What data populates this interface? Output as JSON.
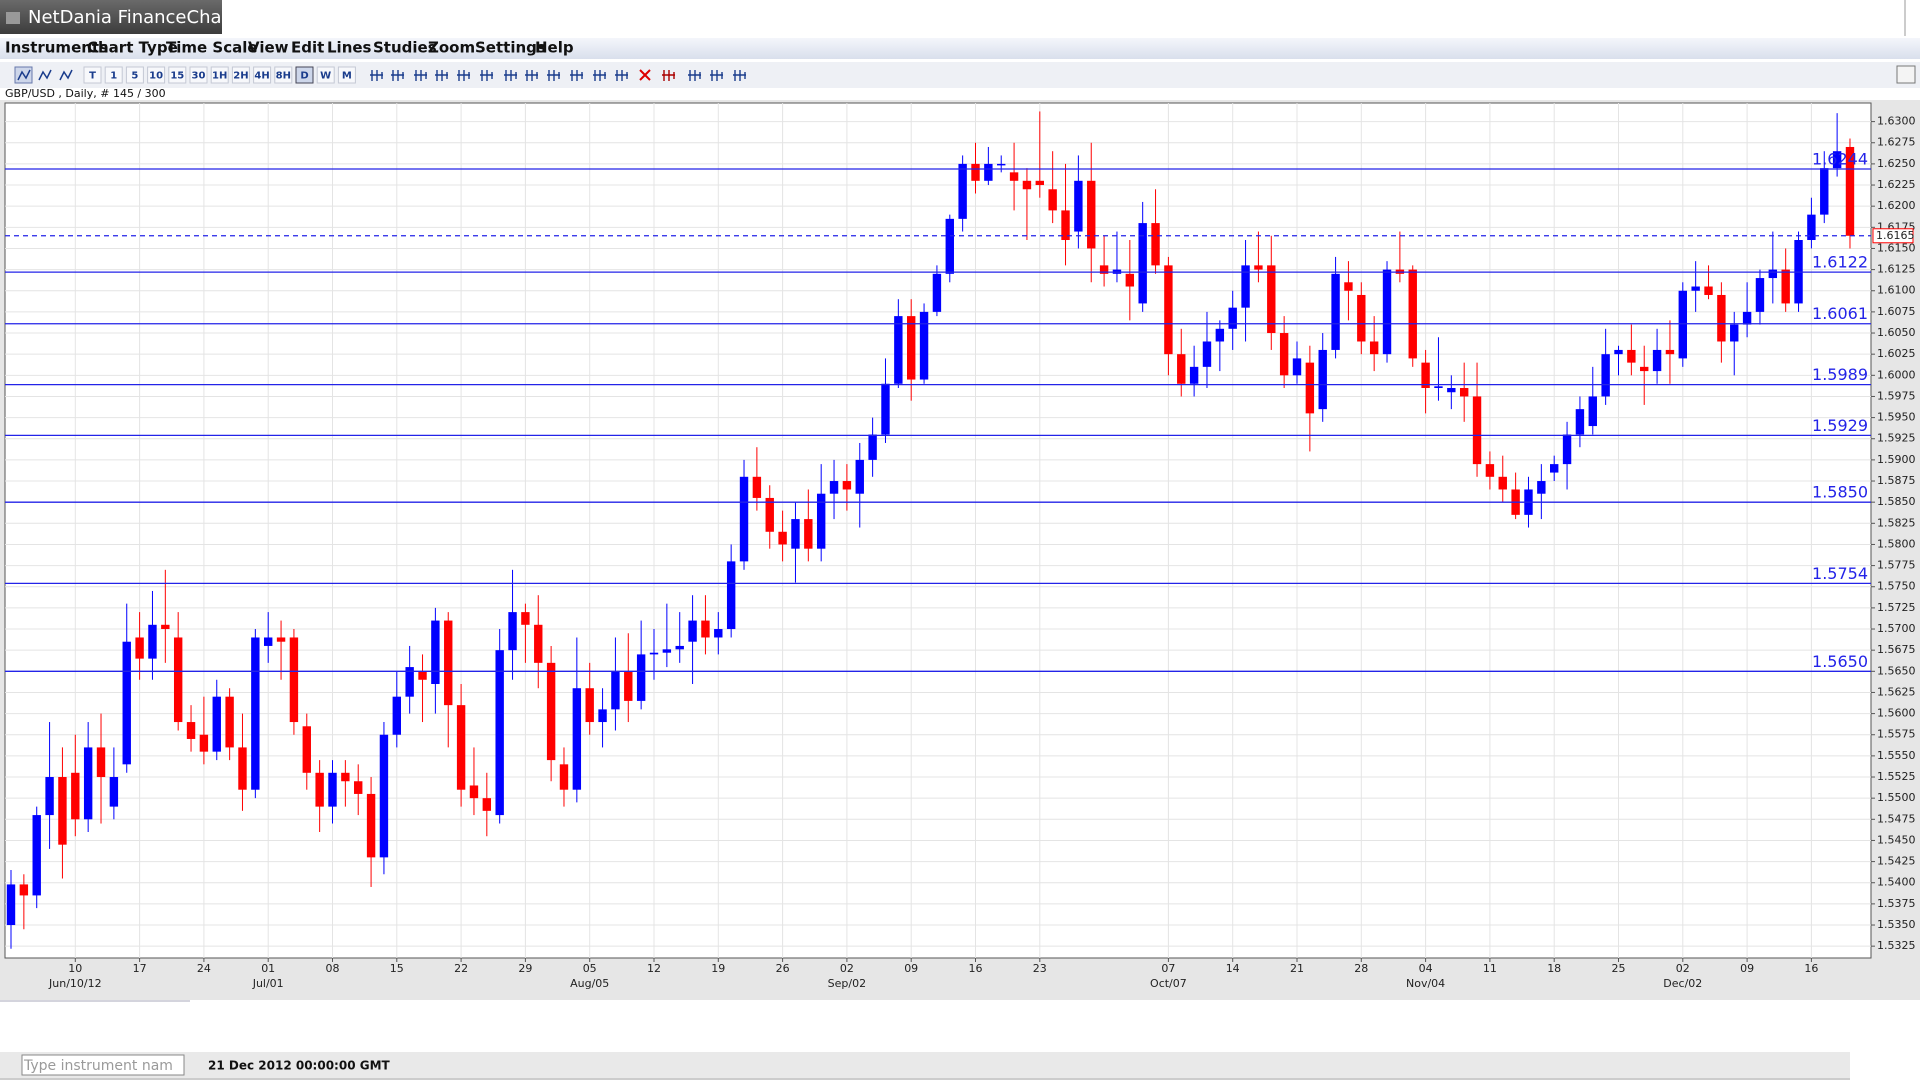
{
  "window": {
    "title": "NetDania FinanceChart"
  },
  "menu": [
    "Instruments",
    "Chart Type",
    "Time Scale",
    "View",
    "Edit",
    "Lines",
    "Studies",
    "Zoom",
    "Settings",
    "Help"
  ],
  "toolbar": {
    "buttons": [
      "T",
      "1",
      "5",
      "10",
      "15",
      "30",
      "1H",
      "2H",
      "4H",
      "8H",
      "D",
      "W",
      "M"
    ]
  },
  "info": "GBP/USD , Daily, # 145 / 300",
  "status": {
    "input_placeholder": "Type instrument nam",
    "timestamp": "21 Dec 2012 00:00:00 GMT"
  },
  "chart_data": {
    "type": "candlestick",
    "up_color": "#0000ff",
    "down_color": "#ff0000",
    "level_color": "#2323e8",
    "grid": true,
    "ylim": [
      1.5311,
      1.6322
    ],
    "yticks": [
      {
        "value": 1.63,
        "label": "1.6300"
      },
      1.6275,
      {
        "value": 1.625,
        "label": "1.6250"
      },
      1.6225,
      {
        "value": 1.62,
        "label": "1.6200"
      },
      1.6175,
      {
        "value": 1.615,
        "label": "1.6150"
      },
      1.6125,
      {
        "value": 1.61,
        "label": "1.6100"
      },
      1.6075,
      {
        "value": 1.605,
        "label": "1.6050"
      },
      1.6025,
      {
        "value": 1.6,
        "label": "1.6000"
      },
      1.5975,
      {
        "value": 1.595,
        "label": "1.5950"
      },
      1.5925,
      {
        "value": 1.59,
        "label": "1.5900"
      },
      1.5875,
      {
        "value": 1.585,
        "label": "1.5850"
      },
      1.5825,
      {
        "value": 1.58,
        "label": "1.5800"
      },
      1.5775,
      {
        "value": 1.575,
        "label": "1.5750"
      },
      1.5725,
      {
        "value": 1.57,
        "label": "1.5700"
      },
      1.5675,
      {
        "value": 1.565,
        "label": "1.5650"
      },
      1.5625,
      {
        "value": 1.56,
        "label": "1.5600"
      },
      1.5575,
      {
        "value": 1.555,
        "label": "1.5550"
      },
      1.5525,
      {
        "value": 1.55,
        "label": "1.5500"
      },
      1.5475,
      {
        "value": 1.545,
        "label": "1.5450"
      },
      1.5425,
      {
        "value": 1.54,
        "label": "1.5400"
      },
      1.5375,
      {
        "value": 1.535,
        "label": "1.5350"
      },
      1.5325
    ],
    "xticks": [
      {
        "value": 5,
        "label": "10"
      },
      {
        "value": 10,
        "label": "17"
      },
      {
        "value": 15,
        "label": "24"
      },
      {
        "value": 20,
        "label": "01"
      },
      {
        "value": 25,
        "label": "08"
      },
      {
        "value": 30,
        "label": "15"
      },
      {
        "value": 35,
        "label": "22"
      },
      {
        "value": 40,
        "label": "29"
      },
      {
        "value": 45,
        "label": "05"
      },
      {
        "value": 50,
        "label": "12"
      },
      {
        "value": 55,
        "label": "19"
      },
      {
        "value": 60,
        "label": "26"
      },
      {
        "value": 65,
        "label": "02"
      },
      {
        "value": 70,
        "label": "09"
      },
      {
        "value": 75,
        "label": "16"
      },
      {
        "value": 80,
        "label": "23"
      },
      {
        "value": 90,
        "label": "07"
      },
      {
        "value": 95,
        "label": "14"
      },
      {
        "value": 100,
        "label": "21"
      },
      {
        "value": 105,
        "label": "28"
      },
      {
        "value": 110,
        "label": "04"
      },
      {
        "value": 115,
        "label": "11"
      },
      {
        "value": 120,
        "label": "18"
      },
      {
        "value": 125,
        "label": "25"
      },
      {
        "value": 130,
        "label": "02"
      },
      {
        "value": 135,
        "label": "09"
      },
      {
        "value": 140,
        "label": "16"
      }
    ],
    "xmajor": [
      {
        "value": 5,
        "label": "Jun/10/12"
      },
      {
        "value": 20,
        "label": "Jul/01"
      },
      {
        "value": 45,
        "label": "Aug/05"
      },
      {
        "value": 65,
        "label": "Sep/02"
      },
      {
        "value": 90,
        "label": "Oct/07"
      },
      {
        "value": 110,
        "label": "Nov/04"
      },
      {
        "value": 130,
        "label": "Dec/02"
      }
    ],
    "levels": [
      1.6244,
      1.6122,
      1.6061,
      1.5989,
      1.5929,
      {
        "value": 1.585,
        "label": "1.5850"
      },
      1.5754,
      {
        "value": 1.565,
        "label": "1.5650"
      }
    ],
    "last_price": 1.6165,
    "candles": [
      [
        1.535,
        1.5415,
        1.5322,
        1.5398
      ],
      [
        1.5398,
        1.541,
        1.5345,
        1.5385
      ],
      [
        1.5385,
        1.549,
        1.537,
        1.548
      ],
      [
        1.548,
        1.559,
        1.544,
        1.5525
      ],
      [
        1.5525,
        1.556,
        1.5405,
        1.5445
      ],
      [
        1.553,
        1.5575,
        1.5455,
        1.5475
      ],
      [
        1.5475,
        1.559,
        1.546,
        1.556
      ],
      [
        1.556,
        1.56,
        1.547,
        1.5525
      ],
      [
        1.549,
        1.556,
        1.5475,
        1.5525
      ],
      [
        1.554,
        1.573,
        1.553,
        1.5685
      ],
      [
        1.569,
        1.572,
        1.564,
        1.5665
      ],
      [
        1.5665,
        1.5745,
        1.564,
        1.5705
      ],
      [
        1.5705,
        1.577,
        1.566,
        1.57
      ],
      [
        1.569,
        1.572,
        1.558,
        1.559
      ],
      [
        1.559,
        1.561,
        1.5555,
        1.557
      ],
      [
        1.5575,
        1.562,
        1.554,
        1.5555
      ],
      [
        1.5555,
        1.564,
        1.5545,
        1.562
      ],
      [
        1.562,
        1.563,
        1.5545,
        1.556
      ],
      [
        1.556,
        1.56,
        1.5485,
        1.551
      ],
      [
        1.551,
        1.57,
        1.55,
        1.569
      ],
      [
        1.568,
        1.572,
        1.566,
        1.569
      ],
      [
        1.569,
        1.571,
        1.564,
        1.5685
      ],
      [
        1.569,
        1.57,
        1.5575,
        1.559
      ],
      [
        1.5585,
        1.56,
        1.551,
        1.553
      ],
      [
        1.553,
        1.5545,
        1.546,
        1.549
      ],
      [
        1.549,
        1.5545,
        1.547,
        1.553
      ],
      [
        1.553,
        1.5545,
        1.549,
        1.552
      ],
      [
        1.552,
        1.554,
        1.548,
        1.5505
      ],
      [
        1.5505,
        1.5525,
        1.5395,
        1.543
      ],
      [
        1.543,
        1.559,
        1.541,
        1.5575
      ],
      [
        1.5575,
        1.565,
        1.556,
        1.562
      ],
      [
        1.562,
        1.568,
        1.56,
        1.5655
      ],
      [
        1.565,
        1.567,
        1.559,
        1.564
      ],
      [
        1.5635,
        1.5725,
        1.56,
        1.571
      ],
      [
        1.571,
        1.572,
        1.556,
        1.561
      ],
      [
        1.561,
        1.5635,
        1.549,
        1.551
      ],
      [
        1.5515,
        1.556,
        1.548,
        1.55
      ],
      [
        1.55,
        1.553,
        1.5455,
        1.5485
      ],
      [
        1.548,
        1.57,
        1.547,
        1.5675
      ],
      [
        1.5675,
        1.577,
        1.564,
        1.572
      ],
      [
        1.572,
        1.573,
        1.566,
        1.5705
      ],
      [
        1.5705,
        1.574,
        1.563,
        1.566
      ],
      [
        1.566,
        1.568,
        1.552,
        1.5545
      ],
      [
        1.554,
        1.556,
        1.549,
        1.551
      ],
      [
        1.551,
        1.569,
        1.5495,
        1.563
      ],
      [
        1.563,
        1.566,
        1.5575,
        1.559
      ],
      [
        1.559,
        1.563,
        1.556,
        1.5605
      ],
      [
        1.5605,
        1.569,
        1.558,
        1.565
      ],
      [
        1.565,
        1.5695,
        1.559,
        1.5615
      ],
      [
        1.5615,
        1.571,
        1.5605,
        1.567
      ],
      [
        1.567,
        1.57,
        1.564,
        1.5672
      ],
      [
        1.5672,
        1.573,
        1.5655,
        1.5676
      ],
      [
        1.5676,
        1.572,
        1.566,
        1.568
      ],
      [
        1.5685,
        1.574,
        1.5635,
        1.571
      ],
      [
        1.571,
        1.574,
        1.567,
        1.569
      ],
      [
        1.569,
        1.572,
        1.567,
        1.57
      ],
      [
        1.57,
        1.58,
        1.569,
        1.578
      ],
      [
        1.578,
        1.59,
        1.577,
        1.588
      ],
      [
        1.588,
        1.5915,
        1.584,
        1.5855
      ],
      [
        1.5855,
        1.587,
        1.5795,
        1.5815
      ],
      [
        1.5815,
        1.584,
        1.578,
        1.58
      ],
      [
        1.5795,
        1.585,
        1.5755,
        1.583
      ],
      [
        1.583,
        1.5865,
        1.578,
        1.5795
      ],
      [
        1.5795,
        1.5895,
        1.578,
        1.586
      ],
      [
        1.586,
        1.59,
        1.583,
        1.5875
      ],
      [
        1.5875,
        1.5895,
        1.584,
        1.5865
      ],
      [
        1.586,
        1.592,
        1.582,
        1.59
      ],
      [
        1.59,
        1.595,
        1.588,
        1.593
      ],
      [
        1.593,
        1.602,
        1.592,
        1.599
      ],
      [
        1.599,
        1.609,
        1.5985,
        1.607
      ],
      [
        1.607,
        1.609,
        1.597,
        1.5995
      ],
      [
        1.5995,
        1.6085,
        1.599,
        1.6075
      ],
      [
        1.6075,
        1.613,
        1.607,
        1.612
      ],
      [
        1.612,
        1.619,
        1.611,
        1.6185
      ],
      [
        1.6185,
        1.626,
        1.617,
        1.625
      ],
      [
        1.625,
        1.6275,
        1.6215,
        1.623
      ],
      [
        1.623,
        1.627,
        1.6225,
        1.625
      ],
      [
        1.625,
        1.626,
        1.624,
        1.625
      ],
      [
        1.624,
        1.6275,
        1.6195,
        1.623
      ],
      [
        1.623,
        1.6245,
        1.616,
        1.622
      ],
      [
        1.623,
        1.6312,
        1.621,
        1.6225
      ],
      [
        1.622,
        1.6265,
        1.618,
        1.6195
      ],
      [
        1.6195,
        1.625,
        1.613,
        1.616
      ],
      [
        1.617,
        1.626,
        1.615,
        1.623
      ],
      [
        1.623,
        1.6275,
        1.611,
        1.615
      ],
      [
        1.613,
        1.6165,
        1.6105,
        1.612
      ],
      [
        1.612,
        1.617,
        1.611,
        1.6125
      ],
      [
        1.612,
        1.616,
        1.6065,
        1.6105
      ],
      [
        1.6085,
        1.6205,
        1.6075,
        1.618
      ],
      [
        1.618,
        1.622,
        1.612,
        1.613
      ],
      [
        1.613,
        1.614,
        1.6,
        1.6025
      ],
      [
        1.6025,
        1.6055,
        1.5975,
        1.599
      ],
      [
        1.599,
        1.6035,
        1.5975,
        1.601
      ],
      [
        1.601,
        1.6075,
        1.5985,
        1.604
      ],
      [
        1.604,
        1.6065,
        1.6005,
        1.6055
      ],
      [
        1.6055,
        1.61,
        1.603,
        1.608
      ],
      [
        1.608,
        1.616,
        1.604,
        1.613
      ],
      [
        1.613,
        1.617,
        1.611,
        1.6125
      ],
      [
        1.613,
        1.6165,
        1.603,
        1.605
      ],
      [
        1.605,
        1.607,
        1.5985,
        1.6
      ],
      [
        1.6,
        1.604,
        1.599,
        1.602
      ],
      [
        1.6015,
        1.6035,
        1.591,
        1.5955
      ],
      [
        1.596,
        1.605,
        1.5945,
        1.603
      ],
      [
        1.603,
        1.614,
        1.602,
        1.612
      ],
      [
        1.611,
        1.6135,
        1.6065,
        1.61
      ],
      [
        1.6095,
        1.611,
        1.6025,
        1.604
      ],
      [
        1.604,
        1.607,
        1.6005,
        1.6025
      ],
      [
        1.6025,
        1.6135,
        1.6015,
        1.6125
      ],
      [
        1.6125,
        1.617,
        1.611,
        1.612
      ],
      [
        1.6125,
        1.613,
        1.601,
        1.602
      ],
      [
        1.6015,
        1.603,
        1.5955,
        1.5985
      ],
      [
        1.5985,
        1.6045,
        1.597,
        1.5987
      ],
      [
        1.598,
        1.6,
        1.596,
        1.5985
      ],
      [
        1.5985,
        1.6015,
        1.5945,
        1.5975
      ],
      [
        1.5975,
        1.6015,
        1.588,
        1.5895
      ],
      [
        1.5895,
        1.591,
        1.5865,
        1.588
      ],
      [
        1.588,
        1.5905,
        1.585,
        1.5865
      ],
      [
        1.5865,
        1.5885,
        1.583,
        1.5835
      ],
      [
        1.5835,
        1.588,
        1.582,
        1.5865
      ],
      [
        1.586,
        1.5895,
        1.583,
        1.5875
      ],
      [
        1.5885,
        1.5905,
        1.5875,
        1.5895
      ],
      [
        1.5895,
        1.5945,
        1.5865,
        1.593
      ],
      [
        1.593,
        1.5975,
        1.5915,
        1.596
      ],
      [
        1.594,
        1.601,
        1.593,
        1.5975
      ],
      [
        1.5975,
        1.6055,
        1.5965,
        1.6025
      ],
      [
        1.6025,
        1.6035,
        1.6,
        1.603
      ],
      [
        1.603,
        1.606,
        1.6,
        1.6015
      ],
      [
        1.601,
        1.6035,
        1.5965,
        1.6005
      ],
      [
        1.6005,
        1.6055,
        1.599,
        1.603
      ],
      [
        1.603,
        1.6065,
        1.599,
        1.6025
      ],
      [
        1.602,
        1.611,
        1.601,
        1.61
      ],
      [
        1.61,
        1.6135,
        1.6075,
        1.6105
      ],
      [
        1.6105,
        1.613,
        1.609,
        1.6095
      ],
      [
        1.6095,
        1.611,
        1.6015,
        1.604
      ],
      [
        1.604,
        1.6075,
        1.6,
        1.606
      ],
      [
        1.606,
        1.611,
        1.6045,
        1.6075
      ],
      [
        1.6075,
        1.6125,
        1.606,
        1.6115
      ],
      [
        1.6115,
        1.617,
        1.6085,
        1.6125
      ],
      [
        1.6125,
        1.615,
        1.6075,
        1.6085
      ],
      [
        1.6085,
        1.617,
        1.6075,
        1.616
      ],
      [
        1.616,
        1.621,
        1.615,
        1.619
      ],
      [
        1.619,
        1.6265,
        1.618,
        1.6245
      ],
      [
        1.6245,
        1.631,
        1.6235,
        1.6265
      ],
      [
        1.627,
        1.628,
        1.615,
        1.6165
      ]
    ]
  }
}
